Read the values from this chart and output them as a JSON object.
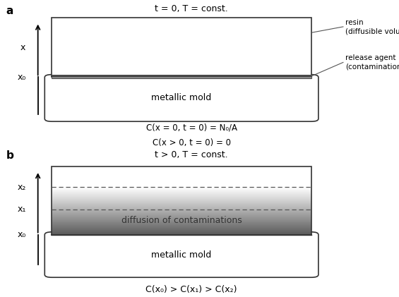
{
  "fig_width": 5.65,
  "fig_height": 4.21,
  "dpi": 100,
  "background": "#ffffff",
  "panel_a_title": "t = 0, T = const.",
  "panel_b_title": "t > 0, T = const.",
  "resin_label": "resin\n(diffusible volume)",
  "release_agent_label": "release agent\n(contamination)",
  "metallic_mold_label_a": "metallic mold",
  "metallic_mold_label_b": "metallic mold",
  "diffusion_label": "diffusion of contaminations",
  "eq_a1": "C(x = 0, t = 0) = N₀/A",
  "eq_a2": "C(x > 0, t = 0) = 0",
  "eq_b": "C(x₀) > C(x₁) > C(x₂)"
}
